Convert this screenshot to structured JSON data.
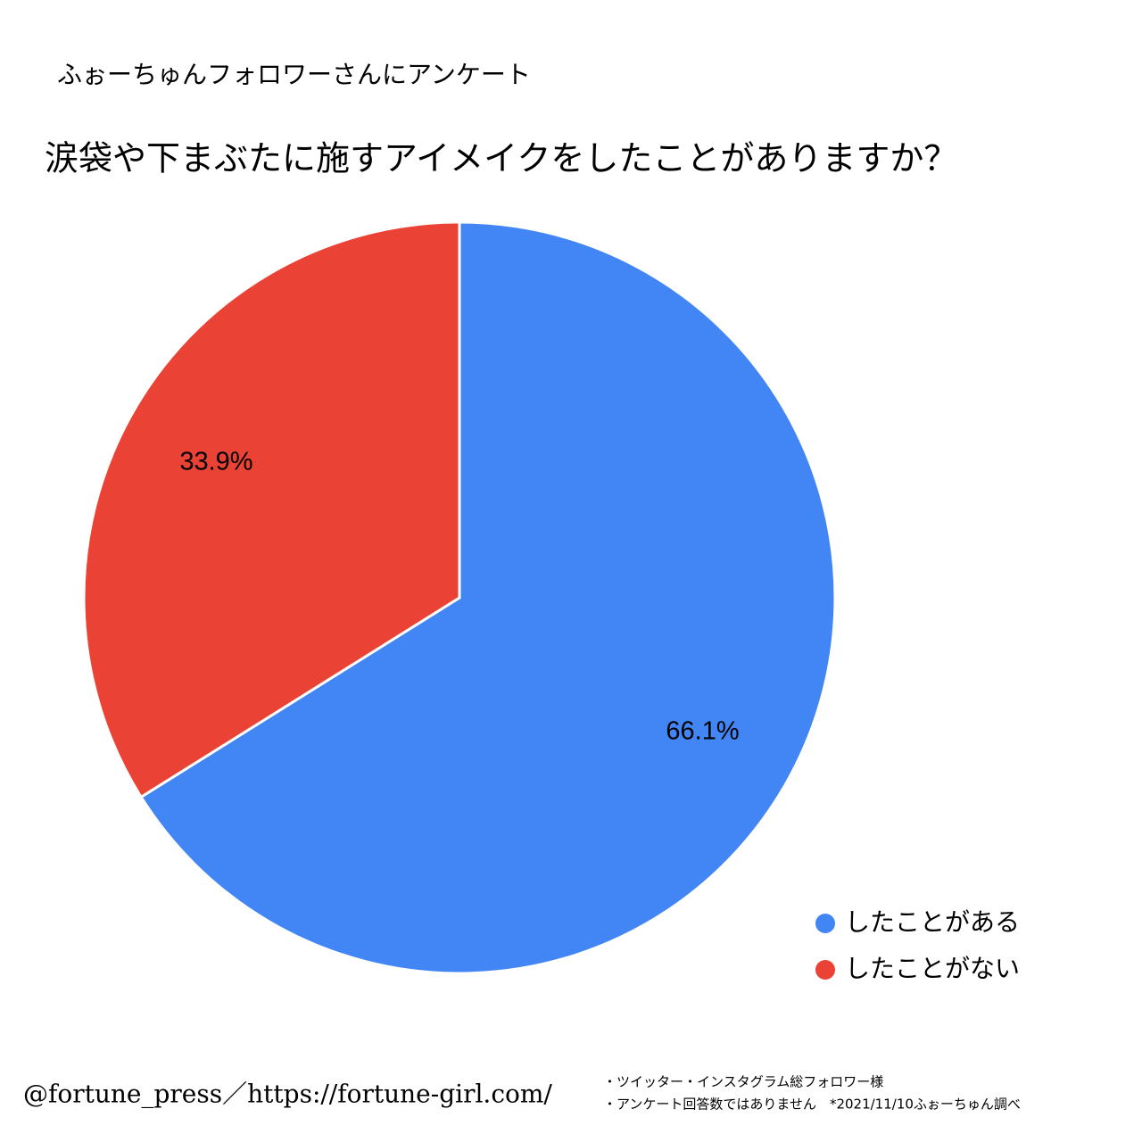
{
  "chart_data": {
    "type": "pie",
    "subtitle": "ふぉーちゅんフォロワーさんにアンケート",
    "title": "涙袋や下まぶたに施すアイメイクをしたことがありますか？",
    "categories": [
      "したことがある",
      "したことがない"
    ],
    "values": [
      66.1,
      33.9
    ],
    "value_labels": [
      "66.1%",
      "33.9%"
    ],
    "colors": [
      "#4285f4",
      "#ea4335"
    ],
    "legend": "bottom-right"
  },
  "footer": {
    "credit": "@fortune_press／https://fortune-girl.com/",
    "notes": [
      "・ツイッター・インスタグラム総フォロワー様",
      "・アンケート回答数ではありません　*2021/11/10ふぉーちゅん調べ"
    ]
  }
}
